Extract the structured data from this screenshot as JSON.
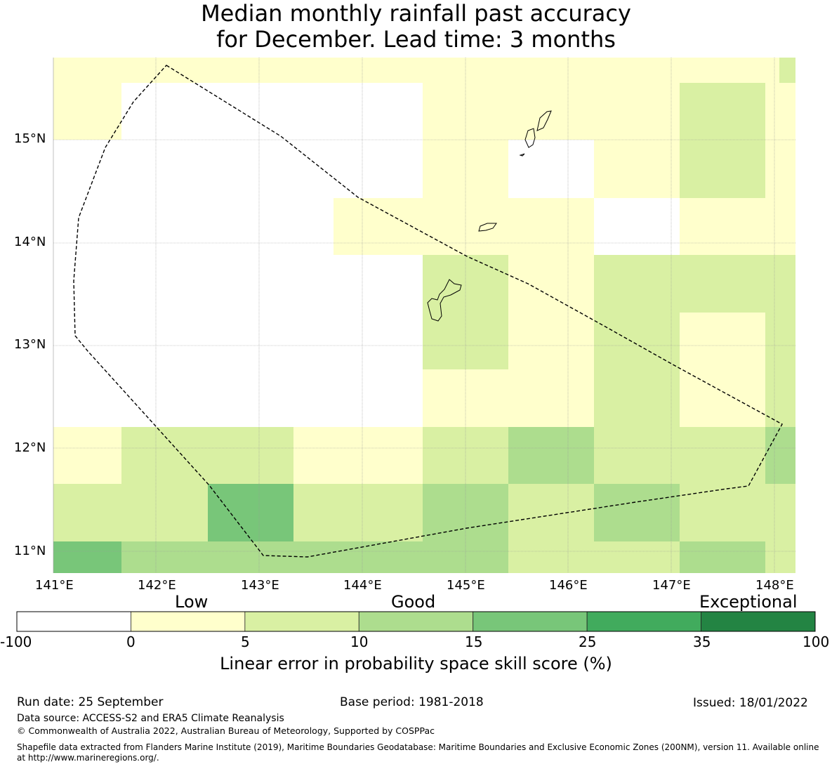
{
  "title": {
    "line1": "Median monthly rainfall past accuracy",
    "line2": "for December. Lead time: 3 months"
  },
  "map": {
    "lat_labels": [
      "15°N",
      "14°N",
      "13°N",
      "12°N",
      "11°N"
    ],
    "lon_labels": [
      "141°E",
      "142°E",
      "143°E",
      "144°E",
      "145°E",
      "146°E",
      "147°E",
      "148°E"
    ],
    "skill_category_key": "0 = -100 to 0 (white), 1 = 0 to 5, 2 = 5 to 10, 3 = 10 to 15, 4 = 15 to 25, 5 = 25 to 35, 6 = 35 to 100",
    "grid_rows_north_to_south": [
      [
        1,
        1,
        1,
        1,
        1,
        1,
        1,
        1,
        1,
        1,
        1,
        1,
        1,
        1,
        1,
        1,
        1,
        2
      ],
      [
        1,
        0,
        0,
        0,
        0,
        0,
        0,
        0,
        1,
        1,
        1,
        1,
        1,
        1,
        2,
        2,
        1,
        1
      ],
      [
        0,
        0,
        0,
        0,
        0,
        0,
        0,
        0,
        1,
        1,
        0,
        0,
        1,
        1,
        2,
        2,
        1,
        1
      ],
      [
        0,
        0,
        0,
        0,
        0,
        0,
        1,
        1,
        1,
        1,
        1,
        1,
        0,
        0,
        1,
        1,
        1,
        1
      ],
      [
        0,
        0,
        0,
        0,
        0,
        0,
        0,
        0,
        2,
        2,
        1,
        1,
        2,
        2,
        2,
        2,
        2,
        2
      ],
      [
        0,
        0,
        0,
        0,
        0,
        0,
        0,
        0,
        2,
        2,
        1,
        1,
        2,
        2,
        1,
        1,
        2,
        2
      ],
      [
        0,
        0,
        0,
        0,
        0,
        0,
        0,
        0,
        1,
        1,
        1,
        1,
        2,
        2,
        1,
        1,
        2,
        2
      ],
      [
        1,
        2,
        2,
        2,
        2,
        1,
        1,
        1,
        2,
        2,
        3,
        3,
        2,
        2,
        2,
        2,
        3,
        3
      ],
      [
        2,
        2,
        2,
        4,
        4,
        2,
        2,
        2,
        3,
        3,
        2,
        2,
        3,
        3,
        2,
        2,
        2,
        2
      ],
      [
        4,
        3,
        3,
        3,
        3,
        3,
        3,
        3,
        3,
        3,
        2,
        2,
        2,
        2,
        3,
        3,
        2,
        2
      ]
    ]
  },
  "colorbar": {
    "category_labels": [
      "Low",
      "Good",
      "Exceptional"
    ],
    "tick_labels": [
      "-100",
      "0",
      "5",
      "10",
      "15",
      "25",
      "35",
      "100"
    ],
    "colors": [
      "#ffffff",
      "#ffffcc",
      "#d9f0a3",
      "#addd8e",
      "#78c679",
      "#41ab5d",
      "#238443"
    ],
    "label": "Linear error in probability space skill score (%)"
  },
  "footer": {
    "run_date": "Run date: 25 September",
    "base_period": "Base period: 1981-2018",
    "issued": "Issued: 18/01/2022",
    "data_source": "Data source: ACCESS-S2 and ERA5 Climate Reanalysis",
    "copyright": "© Commonwealth of Australia 2022, Australian Bureau of Meteorology, Supported by COSPPac",
    "shapefile_note_line1": "Shapefile data extracted from Flanders Marine Institute (2019), Maritime Boundaries Geodatabase: Maritime Boundaries and Exclusive Economic Zones (200NM), version 11. Available online",
    "shapefile_note_line2": "at http://www.marineregions.org/."
  }
}
